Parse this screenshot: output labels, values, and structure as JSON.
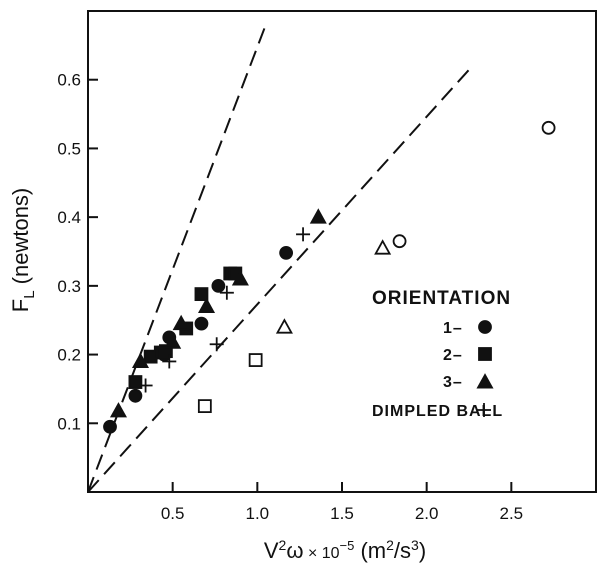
{
  "chart_data": {
    "type": "scatter",
    "title": "",
    "xlabel": "V²ω × 10⁻⁵ (m²/s³)",
    "ylabel": "F_L (newtons)",
    "xlim": [
      0,
      3.0
    ],
    "ylim": [
      0,
      0.7
    ],
    "x_ticks": [
      "0.5",
      "1.0",
      "1.5",
      "2.0",
      "2.5"
    ],
    "x_tick_values": [
      0.5,
      1.0,
      1.5,
      2.0,
      2.5
    ],
    "y_ticks": [
      "0.1",
      "0.2",
      "0.3",
      "0.4",
      "0.5",
      "0.6"
    ],
    "y_tick_values": [
      0.1,
      0.2,
      0.3,
      0.4,
      0.5,
      0.6
    ],
    "grid": false,
    "legend_placement": "right-center",
    "legend": {
      "title": "ORIENTATION",
      "entries": [
        {
          "label": "1–",
          "marker": "circle-filled"
        },
        {
          "label": "2–",
          "marker": "square-filled"
        },
        {
          "label": "3–",
          "marker": "triangle-filled"
        },
        {
          "label": "DIMPLED BALL",
          "marker": "plus"
        }
      ]
    },
    "reference_lines": [
      {
        "style": "dashed",
        "x": [
          0,
          1.05
        ],
        "y": [
          0,
          0.68
        ]
      },
      {
        "style": "dashed",
        "x": [
          0,
          2.27
        ],
        "y": [
          0,
          0.62
        ]
      }
    ],
    "series": [
      {
        "name": "1–",
        "marker": "circle-filled",
        "x": [
          0.13,
          0.28,
          0.45,
          0.48,
          0.67,
          0.77,
          1.17
        ],
        "y": [
          0.095,
          0.14,
          0.2,
          0.225,
          0.245,
          0.3,
          0.348
        ]
      },
      {
        "name": "2–",
        "marker": "square-filled",
        "x": [
          0.28,
          0.37,
          0.43,
          0.46,
          0.58,
          0.67,
          0.84,
          0.87
        ],
        "y": [
          0.16,
          0.197,
          0.203,
          0.205,
          0.238,
          0.288,
          0.318,
          0.318
        ]
      },
      {
        "name": "3–",
        "marker": "triangle-filled",
        "x": [
          0.18,
          0.31,
          0.5,
          0.55,
          0.7,
          0.9,
          1.36
        ],
        "y": [
          0.118,
          0.19,
          0.218,
          0.245,
          0.27,
          0.31,
          0.4
        ]
      },
      {
        "name": "DIMPLED BALL",
        "marker": "plus",
        "x": [
          0.34,
          0.48,
          0.76,
          0.82,
          1.27
        ],
        "y": [
          0.155,
          0.19,
          0.215,
          0.29,
          0.375
        ]
      },
      {
        "marker": "circle-open",
        "x": [
          1.84,
          2.72
        ],
        "y": [
          0.365,
          0.53
        ]
      },
      {
        "marker": "square-open",
        "x": [
          0.69,
          0.99
        ],
        "y": [
          0.125,
          0.192
        ]
      },
      {
        "marker": "triangle-open",
        "x": [
          1.16,
          1.74
        ],
        "y": [
          0.24,
          0.355
        ]
      }
    ]
  }
}
